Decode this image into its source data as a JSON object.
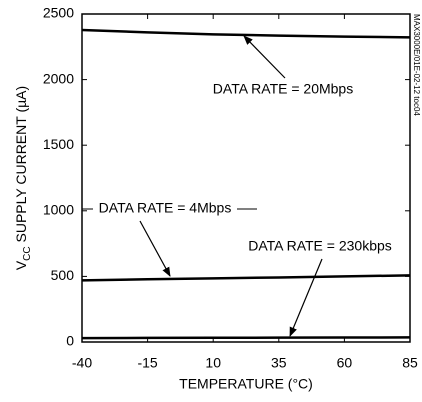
{
  "chart_data": {
    "type": "line",
    "xlabel": "TEMPERATURE (°C)",
    "ylabel": [
      "V",
      "CC",
      " SUPPLY CURRENT (µA)"
    ],
    "x": [
      -40,
      -15,
      10,
      35,
      60,
      85
    ],
    "series": [
      {
        "name": "DATA RATE = 20Mbps",
        "color": "#000000",
        "values": [
          2378,
          2360,
          2345,
          2335,
          2328,
          2322
        ]
      },
      {
        "name": "DATA RATE = 4Mbps",
        "color": "#000000",
        "values": [
          470,
          478,
          485,
          492,
          500,
          508
        ]
      },
      {
        "name": "DATA RATE = 230kbps",
        "color": "#000000",
        "values": [
          30,
          31,
          32,
          33,
          34,
          35
        ]
      }
    ],
    "xlim": [
      -40,
      85
    ],
    "xticks": [
      -40,
      -15,
      10,
      35,
      60,
      85
    ],
    "ylim": [
      0,
      2500
    ],
    "yticks": [
      0,
      500,
      1000,
      1500,
      2000,
      2500
    ],
    "grid": false,
    "side_note": "MAX3000E/01E-02-12 toc04"
  }
}
